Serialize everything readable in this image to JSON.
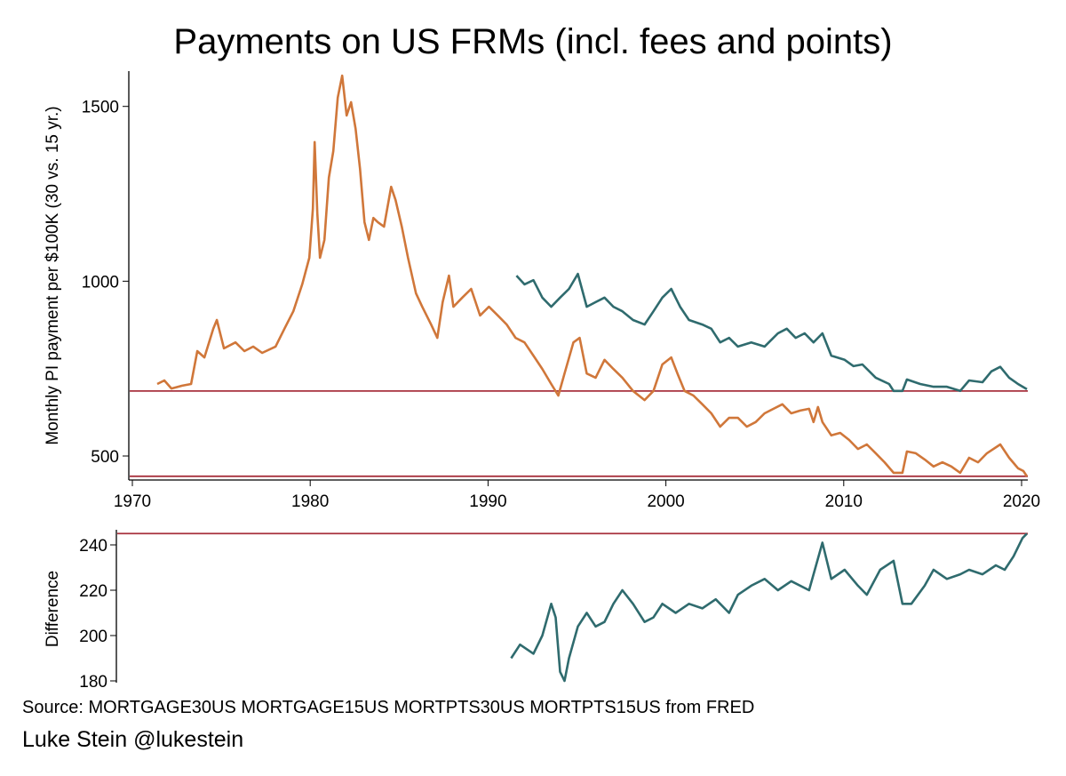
{
  "chart_data": [
    {
      "type": "line",
      "title": "Payments on US FRMs (incl. fees and points)",
      "xlabel": "",
      "ylabel": "Monthly PI payment per $100K (30 vs. 15 yr.)",
      "xlim": [
        1970,
        2020.5
      ],
      "ylim": [
        440,
        1600
      ],
      "xticks": [
        "1970",
        "1980",
        "1990",
        "2000",
        "2010",
        "2020"
      ],
      "xtick_values": [
        1970,
        1980,
        1990,
        2000,
        2010,
        2020
      ],
      "yticks": [
        "500",
        "1000",
        "1500"
      ],
      "ytick_values": [
        500,
        1000,
        1500
      ],
      "grid": false,
      "reference_lines": [
        686,
        442
      ],
      "colors": {
        "thirty": "#d0773a",
        "fifteen": "#2f6b6e",
        "ref": "#a8323e"
      },
      "series": [
        {
          "name": "30-year",
          "points": [
            [
              1971.4,
              706
            ],
            [
              1971.8,
              716
            ],
            [
              1972.2,
              693
            ],
            [
              1972.8,
              701
            ],
            [
              1973.3,
              706
            ],
            [
              1973.65,
              800
            ],
            [
              1974.05,
              782
            ],
            [
              1974.55,
              864
            ],
            [
              1974.75,
              889
            ],
            [
              1975.15,
              808
            ],
            [
              1975.8,
              825
            ],
            [
              1976.3,
              800
            ],
            [
              1976.8,
              813
            ],
            [
              1977.3,
              795
            ],
            [
              1978.05,
              813
            ],
            [
              1978.55,
              864
            ],
            [
              1979.05,
              914
            ],
            [
              1979.55,
              991
            ],
            [
              1979.95,
              1067
            ],
            [
              1980.15,
              1207
            ],
            [
              1980.25,
              1398
            ],
            [
              1980.4,
              1194
            ],
            [
              1980.55,
              1067
            ],
            [
              1980.8,
              1118
            ],
            [
              1981.05,
              1296
            ],
            [
              1981.3,
              1372
            ],
            [
              1981.55,
              1525
            ],
            [
              1981.8,
              1588
            ],
            [
              1982.05,
              1474
            ],
            [
              1982.3,
              1512
            ],
            [
              1982.55,
              1436
            ],
            [
              1982.8,
              1321
            ],
            [
              1983.05,
              1169
            ],
            [
              1983.3,
              1118
            ],
            [
              1983.55,
              1181
            ],
            [
              1983.8,
              1169
            ],
            [
              1984.15,
              1156
            ],
            [
              1984.55,
              1270
            ],
            [
              1984.8,
              1232
            ],
            [
              1985.15,
              1156
            ],
            [
              1985.5,
              1067
            ],
            [
              1985.95,
              965
            ],
            [
              1986.3,
              927
            ],
            [
              1986.8,
              876
            ],
            [
              1987.15,
              838
            ],
            [
              1987.45,
              940
            ],
            [
              1987.8,
              1016
            ],
            [
              1988.05,
              927
            ],
            [
              1988.55,
              953
            ],
            [
              1989.05,
              978
            ],
            [
              1989.55,
              902
            ],
            [
              1990.05,
              927
            ],
            [
              1990.55,
              902
            ],
            [
              1991.05,
              876
            ],
            [
              1991.55,
              838
            ],
            [
              1992.05,
              825
            ],
            [
              1992.55,
              787
            ],
            [
              1993.05,
              749
            ],
            [
              1993.55,
              706
            ],
            [
              1993.95,
              673
            ],
            [
              1994.3,
              736
            ],
            [
              1994.8,
              825
            ],
            [
              1995.15,
              838
            ],
            [
              1995.55,
              736
            ],
            [
              1996.05,
              724
            ],
            [
              1996.55,
              775
            ],
            [
              1997.05,
              749
            ],
            [
              1997.55,
              724
            ],
            [
              1998.15,
              686
            ],
            [
              1998.8,
              660
            ],
            [
              1999.3,
              686
            ],
            [
              1999.8,
              762
            ],
            [
              2000.3,
              782
            ],
            [
              2000.65,
              736
            ],
            [
              2001.05,
              686
            ],
            [
              2001.55,
              673
            ],
            [
              2002.05,
              648
            ],
            [
              2002.55,
              622
            ],
            [
              2003.05,
              584
            ],
            [
              2003.55,
              609
            ],
            [
              2004.05,
              609
            ],
            [
              2004.55,
              584
            ],
            [
              2005.05,
              597
            ],
            [
              2005.55,
              622
            ],
            [
              2006.05,
              635
            ],
            [
              2006.55,
              648
            ],
            [
              2007.05,
              622
            ],
            [
              2007.55,
              630
            ],
            [
              2008.05,
              635
            ],
            [
              2008.3,
              597
            ],
            [
              2008.55,
              640
            ],
            [
              2008.8,
              597
            ],
            [
              2009.3,
              559
            ],
            [
              2009.8,
              566
            ],
            [
              2010.3,
              546
            ],
            [
              2010.8,
              520
            ],
            [
              2011.3,
              533
            ],
            [
              2011.8,
              508
            ],
            [
              2012.3,
              482
            ],
            [
              2012.8,
              452
            ],
            [
              2013.3,
              452
            ],
            [
              2013.55,
              513
            ],
            [
              2014.05,
              508
            ],
            [
              2014.55,
              490
            ],
            [
              2015.05,
              470
            ],
            [
              2015.55,
              482
            ],
            [
              2016.05,
              470
            ],
            [
              2016.55,
              452
            ],
            [
              2017.05,
              495
            ],
            [
              2017.55,
              482
            ],
            [
              2018.05,
              508
            ],
            [
              2018.8,
              533
            ],
            [
              2019.3,
              495
            ],
            [
              2019.8,
              465
            ],
            [
              2020.1,
              457
            ],
            [
              2020.3,
              442
            ]
          ]
        },
        {
          "name": "15-year",
          "points": [
            [
              1991.6,
              1016
            ],
            [
              1992.05,
              991
            ],
            [
              1992.55,
              1003
            ],
            [
              1993.05,
              953
            ],
            [
              1993.55,
              927
            ],
            [
              1994.05,
              953
            ],
            [
              1994.55,
              978
            ],
            [
              1995.05,
              1021
            ],
            [
              1995.55,
              927
            ],
            [
              1996.05,
              940
            ],
            [
              1996.55,
              953
            ],
            [
              1997.05,
              927
            ],
            [
              1997.55,
              914
            ],
            [
              1998.15,
              889
            ],
            [
              1998.8,
              876
            ],
            [
              1999.3,
              914
            ],
            [
              1999.8,
              953
            ],
            [
              2000.3,
              978
            ],
            [
              2000.8,
              927
            ],
            [
              2001.3,
              889
            ],
            [
              2002.05,
              876
            ],
            [
              2002.55,
              864
            ],
            [
              2003.05,
              825
            ],
            [
              2003.55,
              838
            ],
            [
              2004.05,
              813
            ],
            [
              2004.8,
              825
            ],
            [
              2005.55,
              813
            ],
            [
              2006.3,
              851
            ],
            [
              2006.8,
              864
            ],
            [
              2007.3,
              838
            ],
            [
              2007.8,
              851
            ],
            [
              2008.3,
              825
            ],
            [
              2008.8,
              851
            ],
            [
              2009.3,
              787
            ],
            [
              2010.05,
              775
            ],
            [
              2010.55,
              757
            ],
            [
              2011.05,
              762
            ],
            [
              2011.8,
              724
            ],
            [
              2012.55,
              706
            ],
            [
              2012.8,
              686
            ],
            [
              2013.3,
              686
            ],
            [
              2013.55,
              719
            ],
            [
              2014.3,
              706
            ],
            [
              2015.05,
              698
            ],
            [
              2015.8,
              698
            ],
            [
              2016.55,
              686
            ],
            [
              2017.05,
              716
            ],
            [
              2017.8,
              711
            ],
            [
              2018.3,
              742
            ],
            [
              2018.8,
              755
            ],
            [
              2019.3,
              724
            ],
            [
              2019.8,
              706
            ],
            [
              2020.3,
              691
            ]
          ]
        }
      ]
    },
    {
      "type": "line",
      "title": "",
      "xlabel": "",
      "ylabel": "Difference",
      "xlim": [
        1970,
        2020.5
      ],
      "ylim": [
        180,
        246
      ],
      "yticks": [
        "180",
        "200",
        "220",
        "240"
      ],
      "ytick_values": [
        180,
        200,
        220,
        240
      ],
      "grid": false,
      "reference_lines": [
        245
      ],
      "series": [
        {
          "name": "Difference",
          "points": [
            [
              1991.3,
              190
            ],
            [
              1991.8,
              196
            ],
            [
              1992.55,
              192
            ],
            [
              1993.05,
              200
            ],
            [
              1993.55,
              214
            ],
            [
              1993.8,
              208
            ],
            [
              1994.05,
              184
            ],
            [
              1994.3,
              180
            ],
            [
              1994.55,
              190
            ],
            [
              1995.05,
              204
            ],
            [
              1995.55,
              210
            ],
            [
              1996.05,
              204
            ],
            [
              1996.55,
              206
            ],
            [
              1997.05,
              214
            ],
            [
              1997.55,
              220
            ],
            [
              1998.15,
              214
            ],
            [
              1998.8,
              206
            ],
            [
              1999.3,
              208
            ],
            [
              1999.8,
              214
            ],
            [
              2000.55,
              210
            ],
            [
              2001.3,
              214
            ],
            [
              2002.05,
              212
            ],
            [
              2002.8,
              216
            ],
            [
              2003.55,
              210
            ],
            [
              2004.05,
              218
            ],
            [
              2004.8,
              222
            ],
            [
              2005.55,
              225
            ],
            [
              2006.3,
              220
            ],
            [
              2007.05,
              224
            ],
            [
              2008.05,
              220
            ],
            [
              2008.8,
              241
            ],
            [
              2009.3,
              225
            ],
            [
              2010.05,
              229
            ],
            [
              2010.8,
              222
            ],
            [
              2011.3,
              218
            ],
            [
              2012.05,
              229
            ],
            [
              2012.8,
              233
            ],
            [
              2013.3,
              214
            ],
            [
              2013.8,
              214
            ],
            [
              2014.55,
              222
            ],
            [
              2015.05,
              229
            ],
            [
              2015.8,
              225
            ],
            [
              2016.55,
              227
            ],
            [
              2017.05,
              229
            ],
            [
              2017.8,
              227
            ],
            [
              2018.55,
              231
            ],
            [
              2019.05,
              229
            ],
            [
              2019.55,
              235
            ],
            [
              2020.05,
              243
            ],
            [
              2020.3,
              245
            ]
          ]
        }
      ]
    }
  ],
  "footer": {
    "source": "Source: MORTGAGE30US MORTGAGE15US MORTPTS30US MORTPTS15US from FRED",
    "author": "Luke Stein @lukestein"
  }
}
